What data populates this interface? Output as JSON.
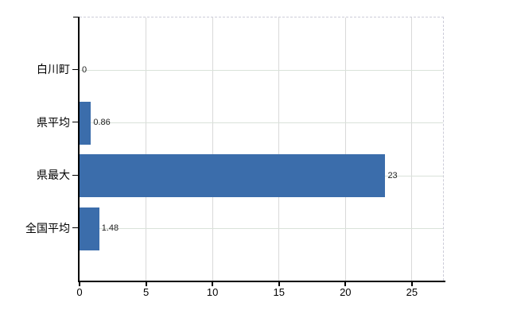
{
  "chart_data": {
    "type": "bar",
    "orientation": "horizontal",
    "title": "",
    "xlabel": "",
    "ylabel": "",
    "categories": [
      "白川町",
      "県平均",
      "県最大",
      "全国平均"
    ],
    "values": [
      0,
      0.86,
      23,
      1.48
    ],
    "value_labels": [
      "0",
      "0.86",
      "23",
      "1.48"
    ],
    "x_ticks": [
      0,
      5,
      10,
      15,
      20,
      25
    ],
    "x_tick_labels": [
      "0",
      "5",
      "10",
      "15",
      "20",
      "25"
    ],
    "x_max": 27.4,
    "grid": true,
    "legend": false,
    "colors": {
      "bar": "#3b6dab",
      "axis": "#000000",
      "vertical_gridline": "#d9d9d9",
      "horizontal_gridline": "#d9e2d9",
      "plot_border": "#ccccd8",
      "value_label_text": "#1f1f1f",
      "tick_label_text": "#000000",
      "background": "#ffffff"
    }
  }
}
